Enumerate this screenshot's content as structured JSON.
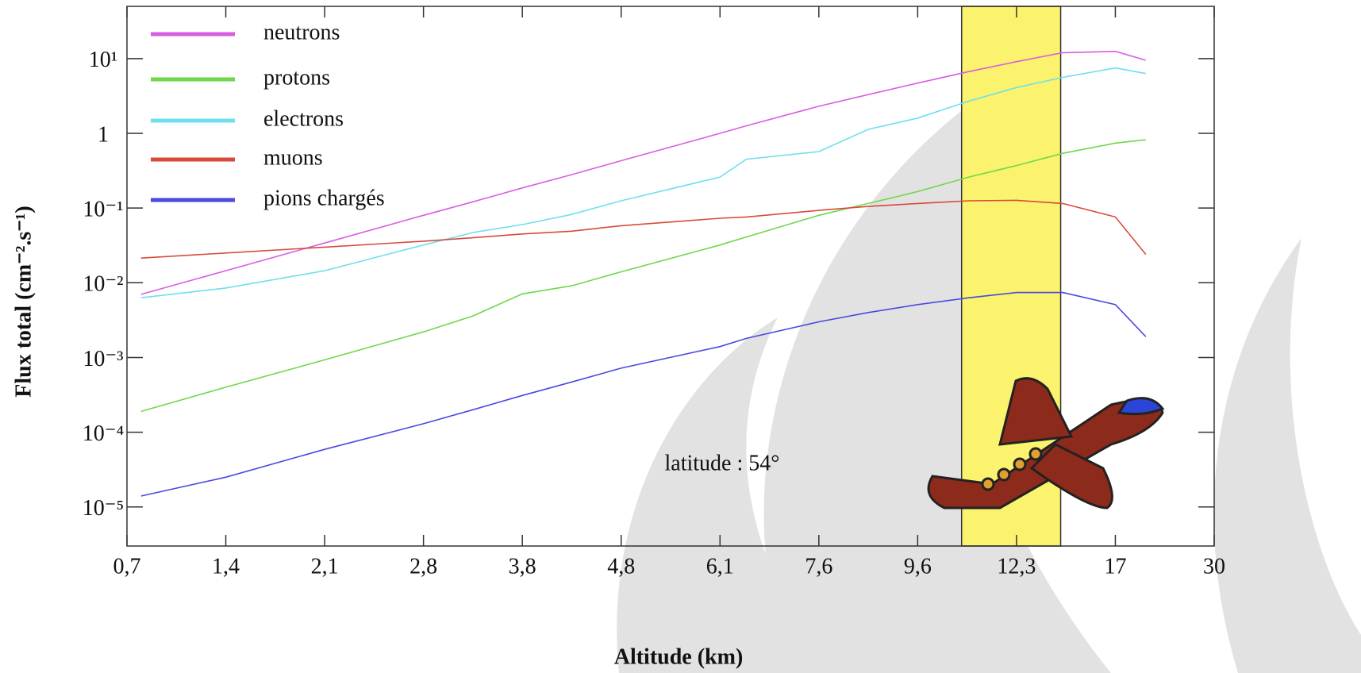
{
  "chart_data": {
    "type": "line",
    "x_label": "Altitude (km)",
    "y_label": "Flux total (cm⁻².s⁻¹)",
    "y_scale": "log",
    "annotation": "latitude : 54°",
    "highlight": [
      10.8,
      14.4
    ],
    "highlight_color": "#fbf26d",
    "legend_position": "upper left",
    "xlim": [
      0.7,
      30
    ],
    "xticks": [
      {
        "value": 0.7,
        "label": "0,7"
      },
      {
        "value": 1.4,
        "label": "1,4"
      },
      {
        "value": 2.1,
        "label": "2,1"
      },
      {
        "value": 2.8,
        "label": "2,8"
      },
      {
        "value": 3.8,
        "label": "3,8"
      },
      {
        "value": 4.8,
        "label": "4,8"
      },
      {
        "value": 6.1,
        "label": "6,1"
      },
      {
        "value": 7.6,
        "label": "7,6"
      },
      {
        "value": 9.6,
        "label": "9,6"
      },
      {
        "value": 12.3,
        "label": "12,3"
      },
      17,
      30
    ],
    "ylim": [
      3e-06,
      50
    ],
    "yticks": [
      {
        "value": 10,
        "label": "10¹"
      },
      1,
      {
        "value": 0.1,
        "label": "10⁻¹"
      },
      {
        "value": 0.01,
        "label": "10⁻²"
      },
      {
        "value": 0.001,
        "label": "10⁻³"
      },
      {
        "value": 0.0001,
        "label": "10⁻⁴"
      },
      {
        "value": 1e-05,
        "label": "10⁻⁵"
      }
    ],
    "x": [
      0.8,
      1.4,
      2.1,
      2.8,
      3.3,
      3.8,
      4.3,
      4.8,
      6.1,
      6.5,
      7.6,
      8.6,
      9.6,
      11,
      12.3,
      14.5,
      17,
      21
    ],
    "series": [
      {
        "name": "neutrons",
        "color": "#d85ee0",
        "values": [
          0.007,
          0.0145,
          0.034,
          0.08,
          0.121,
          0.186,
          0.28,
          0.43,
          1.0,
          1.26,
          2.3,
          3.3,
          4.7,
          6.7,
          9.1,
          12,
          12.5,
          9.5
        ]
      },
      {
        "name": "protons",
        "color": "#6ed84a",
        "values": [
          0.00019,
          0.0004,
          0.00093,
          0.0022,
          0.0036,
          0.0071,
          0.0091,
          0.014,
          0.032,
          0.041,
          0.08,
          0.115,
          0.166,
          0.26,
          0.37,
          0.54,
          0.74,
          0.82
        ]
      },
      {
        "name": "electrons",
        "color": "#6ee0ec",
        "values": [
          0.0063,
          0.0085,
          0.0145,
          0.032,
          0.047,
          0.06,
          0.082,
          0.125,
          0.26,
          0.45,
          0.57,
          1.13,
          1.6,
          2.7,
          4.1,
          5.6,
          7.5,
          6.3
        ]
      },
      {
        "name": "muons",
        "color": "#d64b3c",
        "values": [
          0.0214,
          0.025,
          0.03,
          0.036,
          0.04,
          0.045,
          0.049,
          0.058,
          0.073,
          0.076,
          0.093,
          0.105,
          0.115,
          0.125,
          0.127,
          0.115,
          0.076,
          0.024
        ]
      },
      {
        "name": "pions chargés",
        "color": "#4a4ae0",
        "values": [
          1.4e-05,
          2.5e-05,
          5.9e-05,
          0.00013,
          0.0002,
          0.00031,
          0.00047,
          0.00072,
          0.0014,
          0.0018,
          0.003,
          0.004,
          0.0051,
          0.0063,
          0.0074,
          0.0074,
          0.0051,
          0.0019
        ]
      }
    ]
  }
}
